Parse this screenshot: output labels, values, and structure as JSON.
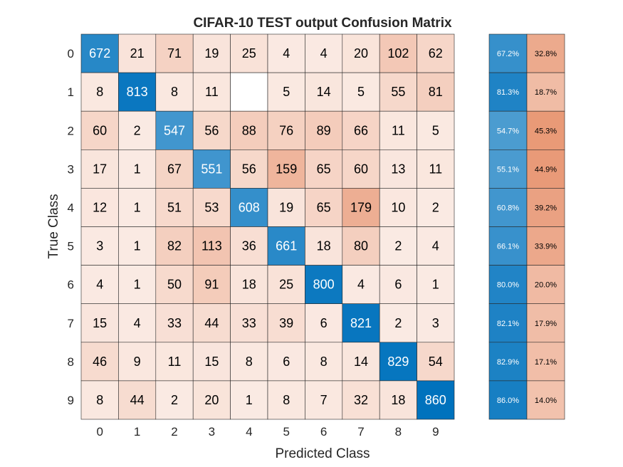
{
  "chart_data": {
    "type": "heatmap",
    "title": "CIFAR-10 TEST output Confusion Matrix",
    "xlabel": "Predicted Class",
    "ylabel": "True Class",
    "classes": [
      "0",
      "1",
      "2",
      "3",
      "4",
      "5",
      "6",
      "7",
      "8",
      "9"
    ],
    "matrix": [
      [
        672,
        21,
        71,
        19,
        25,
        4,
        4,
        20,
        102,
        62
      ],
      [
        8,
        813,
        8,
        11,
        null,
        5,
        14,
        5,
        55,
        81
      ],
      [
        60,
        2,
        547,
        56,
        88,
        76,
        89,
        66,
        11,
        5
      ],
      [
        17,
        1,
        67,
        551,
        56,
        159,
        65,
        60,
        13,
        11
      ],
      [
        12,
        1,
        51,
        53,
        608,
        19,
        65,
        179,
        10,
        2
      ],
      [
        3,
        1,
        82,
        113,
        36,
        661,
        18,
        80,
        2,
        4
      ],
      [
        4,
        1,
        50,
        91,
        18,
        25,
        800,
        4,
        6,
        1
      ],
      [
        15,
        4,
        33,
        44,
        33,
        39,
        6,
        821,
        2,
        3
      ],
      [
        46,
        9,
        11,
        15,
        8,
        6,
        8,
        14,
        829,
        54
      ],
      [
        8,
        44,
        2,
        20,
        1,
        8,
        7,
        32,
        18,
        860
      ]
    ],
    "row_summary": {
      "correct": [
        "67.2%",
        "81.3%",
        "54.7%",
        "55.1%",
        "60.8%",
        "66.1%",
        "80.0%",
        "82.1%",
        "82.9%",
        "86.0%"
      ],
      "incorrect": [
        "32.8%",
        "18.7%",
        "45.3%",
        "44.9%",
        "39.2%",
        "33.9%",
        "20.0%",
        "17.9%",
        "17.1%",
        "14.0%"
      ]
    },
    "colors": {
      "diagonal_high": "#0072BD",
      "diagonal_low": "#FFFFFF",
      "offdiag_high": "#D95319",
      "offdiag_low": "#FFFFFF",
      "text_dark": "#000000",
      "text_light": "#FFFFFF",
      "grid": "#262626"
    }
  }
}
